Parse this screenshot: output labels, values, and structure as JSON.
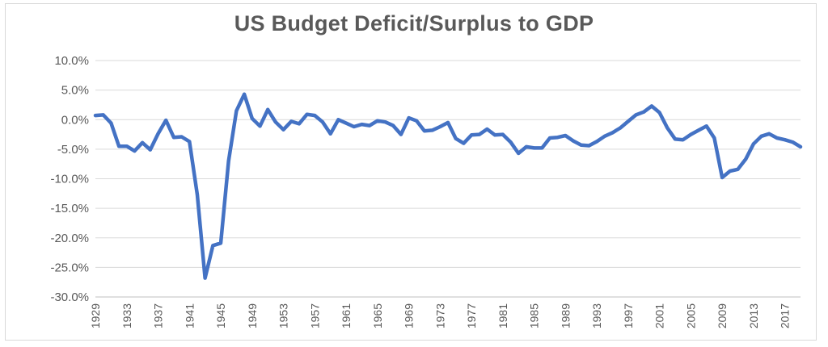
{
  "chart_data": {
    "type": "line",
    "title": "US Budget Deficit/Surplus to GDP",
    "xlabel": "",
    "ylabel": "",
    "ylim": [
      -30,
      10
    ],
    "yticks": [
      "10.0%",
      "5.0%",
      "0.0%",
      "-5.0%",
      "-10.0%",
      "-15.0%",
      "-20.0%",
      "-25.0%",
      "-30.0%"
    ],
    "xticks": [
      "1929",
      "1933",
      "1937",
      "1941",
      "1945",
      "1949",
      "1953",
      "1957",
      "1961",
      "1965",
      "1969",
      "1973",
      "1977",
      "1981",
      "1985",
      "1989",
      "1993",
      "1997",
      "2001",
      "2005",
      "2009",
      "2013",
      "2017"
    ],
    "grid": true,
    "legend": "none",
    "color": "#4472c4",
    "x": [
      1929,
      1930,
      1931,
      1932,
      1933,
      1934,
      1935,
      1936,
      1937,
      1938,
      1939,
      1940,
      1941,
      1942,
      1943,
      1944,
      1945,
      1946,
      1947,
      1948,
      1949,
      1950,
      1951,
      1952,
      1953,
      1954,
      1955,
      1956,
      1957,
      1958,
      1959,
      1960,
      1961,
      1962,
      1963,
      1964,
      1965,
      1966,
      1967,
      1968,
      1969,
      1970,
      1971,
      1972,
      1973,
      1974,
      1975,
      1976,
      1977,
      1978,
      1979,
      1980,
      1981,
      1982,
      1983,
      1984,
      1985,
      1986,
      1987,
      1988,
      1989,
      1990,
      1991,
      1992,
      1993,
      1994,
      1995,
      1996,
      1997,
      1998,
      1999,
      2000,
      2001,
      2002,
      2003,
      2004,
      2005,
      2006,
      2007,
      2008,
      2009,
      2010,
      2011,
      2012,
      2013,
      2014,
      2015,
      2016,
      2017,
      2018,
      2019
    ],
    "values": [
      0.7,
      0.8,
      -0.6,
      -4.5,
      -4.5,
      -5.3,
      -3.9,
      -5.1,
      -2.4,
      -0.1,
      -3.0,
      -2.9,
      -3.7,
      -12.7,
      -26.8,
      -21.3,
      -20.9,
      -7.0,
      1.5,
      4.3,
      0.2,
      -1.1,
      1.7,
      -0.4,
      -1.7,
      -0.3,
      -0.7,
      0.9,
      0.7,
      -0.4,
      -2.4,
      0.0,
      -0.6,
      -1.2,
      -0.8,
      -1.0,
      -0.2,
      -0.4,
      -1.0,
      -2.5,
      0.3,
      -0.2,
      -1.9,
      -1.8,
      -1.2,
      -0.5,
      -3.2,
      -4.0,
      -2.6,
      -2.5,
      -1.6,
      -2.6,
      -2.5,
      -3.8,
      -5.7,
      -4.6,
      -4.8,
      -4.8,
      -3.1,
      -3.0,
      -2.7,
      -3.6,
      -4.3,
      -4.4,
      -3.7,
      -2.8,
      -2.2,
      -1.4,
      -0.3,
      0.8,
      1.3,
      2.3,
      1.2,
      -1.4,
      -3.3,
      -3.4,
      -2.5,
      -1.8,
      -1.1,
      -3.1,
      -9.8,
      -8.7,
      -8.4,
      -6.7,
      -4.1,
      -2.8,
      -2.4,
      -3.1,
      -3.4,
      -3.8,
      -4.6
    ]
  }
}
